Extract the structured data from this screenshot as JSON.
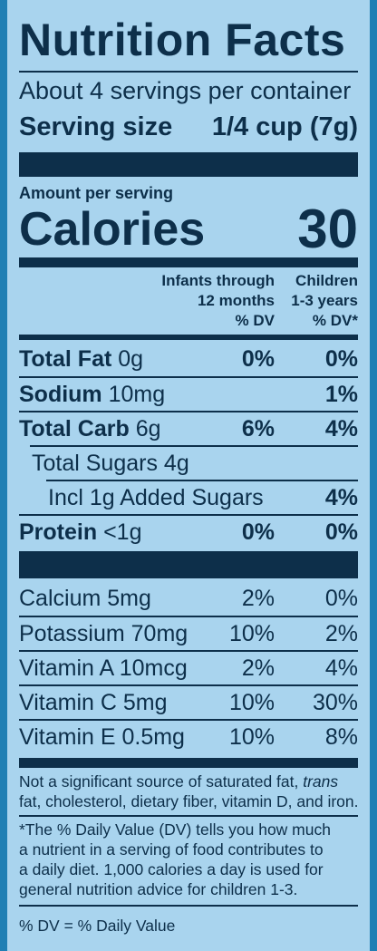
{
  "title": "Nutrition Facts",
  "servings_per_container": "About 4 servings per container",
  "serving_size": {
    "label": "Serving size",
    "value": "1/4 cup (7g)"
  },
  "amount_per_serving": "Amount per serving",
  "calories": {
    "label": "Calories",
    "value": "30"
  },
  "columns": {
    "infants": [
      "Infants through",
      "12 months",
      "% DV"
    ],
    "children": [
      "Children",
      "1-3 years",
      "% DV*"
    ]
  },
  "nutrients": [
    {
      "bold": "Total Fat",
      "amount": " 0g",
      "infants": "0%",
      "children": "0%"
    },
    {
      "bold": "Sodium",
      "amount": " 10mg",
      "infants": "",
      "children": "1%"
    },
    {
      "bold": "Total Carb",
      "amount": " 6g",
      "infants": "6%",
      "children": "4%"
    },
    {
      "bold": "",
      "amount": "Total Sugars 4g",
      "infants": "",
      "children": ""
    },
    {
      "bold": "",
      "amount": "Incl 1g Added Sugars",
      "infants": "",
      "children": "4%"
    },
    {
      "bold": "Protein",
      "amount": " <1g",
      "infants": "0%",
      "children": "0%"
    }
  ],
  "vitamins": [
    {
      "name": "Calcium 5mg",
      "infants": "2%",
      "children": "0%"
    },
    {
      "name": "Potassium 70mg",
      "infants": "10%",
      "children": "2%"
    },
    {
      "name": "Vitamin A 10mcg",
      "infants": "2%",
      "children": "4%"
    },
    {
      "name": "Vitamin C 5mg",
      "infants": "10%",
      "children": "30%"
    },
    {
      "name": "Vitamin E 0.5mg",
      "infants": "10%",
      "children": "8%"
    }
  ],
  "footnotes": {
    "not_significant_1a": "Not a significant source of saturated fat, ",
    "not_significant_1b": "trans",
    "not_significant_2": "fat, cholesterol, dietary fiber, vitamin D, and iron.",
    "dv_1": "*The % Daily Value (DV) tells you how much",
    "dv_2": "a nutrient in a serving of food contributes to",
    "dv_3": "a daily diet. 1,000 calories a day is used for",
    "dv_4": "general nutrition advice for children 1-3.",
    "legend": "% DV = % Daily Value"
  }
}
